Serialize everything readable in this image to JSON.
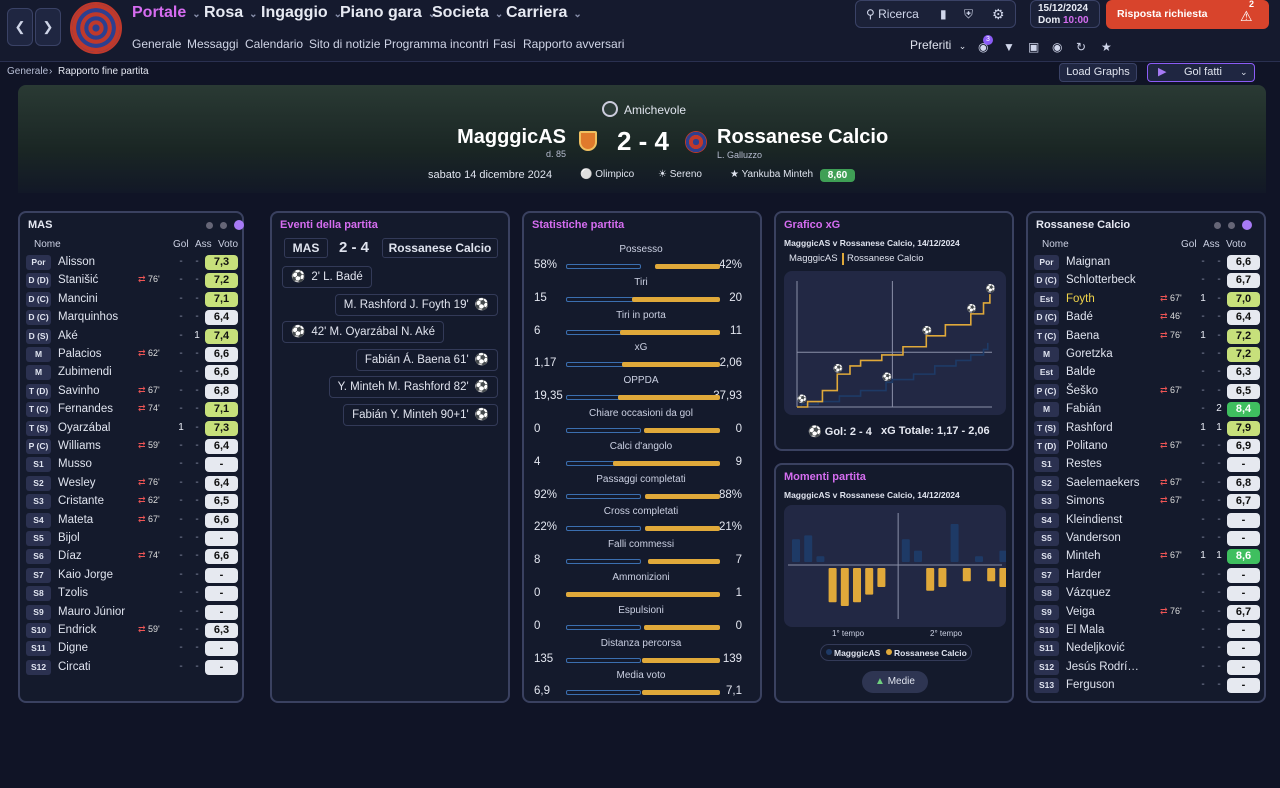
{
  "nav": {
    "menus": [
      "Portale",
      "Rosa",
      "Ingaggio",
      "Piano gara",
      "Societa",
      "Carriera"
    ],
    "submenus": [
      "Generale",
      "Messaggi",
      "Calendario",
      "Sito di notizie",
      "Programma incontri",
      "Fasi",
      "Rapporto avversari"
    ],
    "search": "Ricerca",
    "date": "15/12/2024",
    "day": "Dom",
    "time": "10:00",
    "action": "Risposta richiesta",
    "action_badge": "2",
    "preferiti": "Preferiti",
    "msg_badge": "3"
  },
  "breadcrumb": {
    "root": "Generale",
    "current": "Rapporto fine partita"
  },
  "toolbar": {
    "load_graphs": "Load Graphs",
    "gol_fatti": "Gol fatti"
  },
  "match": {
    "competition": "Amichevole",
    "home": "MagggicAS",
    "home_sub": "d. 85",
    "away": "Rossanese Calcio",
    "away_sub": "L. Galluzzo",
    "score": "2 - 4",
    "date": "sabato 14 dicembre 2024",
    "stadium": "Olimpico",
    "weather": "Sereno",
    "motm": "Yankuba Minteh",
    "motm_rating": "8,60"
  },
  "home_panel": {
    "title": "MAS",
    "cols": [
      "Nome",
      "Gol",
      "Ass",
      "Voto"
    ],
    "players": [
      {
        "pos": "Por",
        "name": "Alisson",
        "sub": "",
        "gol": "-",
        "ass": "-",
        "voto": "7,3",
        "c": "#c7e07b"
      },
      {
        "pos": "D (D)",
        "name": "Stanišić",
        "sub": "76'",
        "gol": "-",
        "ass": "-",
        "voto": "7,2",
        "c": "#c7e07b"
      },
      {
        "pos": "D (C)",
        "name": "Mancini",
        "sub": "",
        "gol": "-",
        "ass": "-",
        "voto": "7,1",
        "c": "#c7e07b"
      },
      {
        "pos": "D (C)",
        "name": "Marquinhos",
        "sub": "",
        "gol": "-",
        "ass": "-",
        "voto": "6,4",
        "c": "#e6e9f0"
      },
      {
        "pos": "D (S)",
        "name": "Aké",
        "sub": "",
        "gol": "-",
        "ass": "1",
        "voto": "7,4",
        "c": "#c7e07b"
      },
      {
        "pos": "M",
        "name": "Palacios",
        "sub": "62'",
        "gol": "-",
        "ass": "-",
        "voto": "6,6",
        "c": "#e6e9f0"
      },
      {
        "pos": "M",
        "name": "Zubimendi",
        "sub": "",
        "gol": "-",
        "ass": "-",
        "voto": "6,6",
        "c": "#e6e9f0"
      },
      {
        "pos": "T (D)",
        "name": "Savinho",
        "sub": "67'",
        "gol": "-",
        "ass": "-",
        "voto": "6,8",
        "c": "#e6e9f0"
      },
      {
        "pos": "T (C)",
        "name": "Fernandes",
        "sub": "74'",
        "gol": "-",
        "ass": "-",
        "voto": "7,1",
        "c": "#c7e07b"
      },
      {
        "pos": "T (S)",
        "name": "Oyarzábal",
        "sub": "",
        "gol": "1",
        "ass": "-",
        "voto": "7,3",
        "c": "#c7e07b"
      },
      {
        "pos": "P (C)",
        "name": "Williams",
        "sub": "59'",
        "gol": "-",
        "ass": "-",
        "voto": "6,4",
        "c": "#e6e9f0"
      },
      {
        "pos": "S1",
        "name": "Musso",
        "sub": "",
        "gol": "-",
        "ass": "-",
        "voto": "-",
        "c": "#e6e9f0"
      },
      {
        "pos": "S2",
        "name": "Wesley",
        "sub": "76'",
        "gol": "-",
        "ass": "-",
        "voto": "6,4",
        "c": "#e6e9f0"
      },
      {
        "pos": "S3",
        "name": "Cristante",
        "sub": "62'",
        "gol": "-",
        "ass": "-",
        "voto": "6,5",
        "c": "#e6e9f0"
      },
      {
        "pos": "S4",
        "name": "Mateta",
        "sub": "67'",
        "gol": "-",
        "ass": "-",
        "voto": "6,6",
        "c": "#e6e9f0"
      },
      {
        "pos": "S5",
        "name": "Bijol",
        "sub": "",
        "gol": "-",
        "ass": "-",
        "voto": "-",
        "c": "#e6e9f0"
      },
      {
        "pos": "S6",
        "name": "Díaz",
        "sub": "74'",
        "gol": "-",
        "ass": "-",
        "voto": "6,6",
        "c": "#e6e9f0"
      },
      {
        "pos": "S7",
        "name": "Kaio Jorge",
        "sub": "",
        "gol": "-",
        "ass": "-",
        "voto": "-",
        "c": "#e6e9f0"
      },
      {
        "pos": "S8",
        "name": "Tzolis",
        "sub": "",
        "gol": "-",
        "ass": "-",
        "voto": "-",
        "c": "#e6e9f0"
      },
      {
        "pos": "S9",
        "name": "Mauro Júnior",
        "sub": "",
        "gol": "-",
        "ass": "-",
        "voto": "-",
        "c": "#e6e9f0"
      },
      {
        "pos": "S10",
        "name": "Endrick",
        "sub": "59'",
        "gol": "-",
        "ass": "-",
        "voto": "6,3",
        "c": "#e6e9f0"
      },
      {
        "pos": "S11",
        "name": "Digne",
        "sub": "",
        "gol": "-",
        "ass": "-",
        "voto": "-",
        "c": "#e6e9f0"
      },
      {
        "pos": "S12",
        "name": "Circati",
        "sub": "",
        "gol": "-",
        "ass": "-",
        "voto": "-",
        "c": "#e6e9f0"
      }
    ]
  },
  "away_panel": {
    "title": "Rossanese Calcio",
    "cols": [
      "Nome",
      "Gol",
      "Ass",
      "Voto"
    ],
    "players": [
      {
        "pos": "Por",
        "name": "Maignan",
        "sub": "",
        "gol": "-",
        "ass": "-",
        "voto": "6,6",
        "c": "#e6e9f0"
      },
      {
        "pos": "D (C)",
        "name": "Schlotterbeck",
        "sub": "",
        "gol": "-",
        "ass": "-",
        "voto": "6,7",
        "c": "#e6e9f0"
      },
      {
        "pos": "Est (D)",
        "name": "Foyth",
        "sub": "67'",
        "gol": "1",
        "ass": "-",
        "voto": "7,0",
        "c": "#c7e07b",
        "hl": true
      },
      {
        "pos": "D (C)",
        "name": "Badé",
        "sub": "46'",
        "gol": "-",
        "ass": "-",
        "voto": "6,4",
        "c": "#e6e9f0"
      },
      {
        "pos": "T (C)",
        "name": "Baena",
        "sub": "76'",
        "gol": "1",
        "ass": "-",
        "voto": "7,2",
        "c": "#c7e07b"
      },
      {
        "pos": "M",
        "name": "Goretzka",
        "sub": "",
        "gol": "-",
        "ass": "-",
        "voto": "7,2",
        "c": "#c7e07b"
      },
      {
        "pos": "Est (S)",
        "name": "Balde",
        "sub": "",
        "gol": "-",
        "ass": "-",
        "voto": "6,3",
        "c": "#e6e9f0"
      },
      {
        "pos": "P (C)",
        "name": "Šeško",
        "sub": "67'",
        "gol": "-",
        "ass": "-",
        "voto": "6,5",
        "c": "#e6e9f0"
      },
      {
        "pos": "M",
        "name": "Fabián",
        "sub": "",
        "gol": "-",
        "ass": "2",
        "voto": "8,4",
        "c": "#3fbf5f"
      },
      {
        "pos": "T (S)",
        "name": "Rashford",
        "sub": "",
        "gol": "1",
        "ass": "1",
        "voto": "7,9",
        "c": "#c7e07b"
      },
      {
        "pos": "T (D)",
        "name": "Politano",
        "sub": "67'",
        "gol": "-",
        "ass": "-",
        "voto": "6,9",
        "c": "#e6e9f0"
      },
      {
        "pos": "S1",
        "name": "Restes",
        "sub": "",
        "gol": "-",
        "ass": "-",
        "voto": "-",
        "c": "#e6e9f0"
      },
      {
        "pos": "S2",
        "name": "Saelemaekers",
        "sub": "67'",
        "gol": "-",
        "ass": "-",
        "voto": "6,8",
        "c": "#e6e9f0"
      },
      {
        "pos": "S3",
        "name": "Simons",
        "sub": "67'",
        "gol": "-",
        "ass": "-",
        "voto": "6,7",
        "c": "#e6e9f0"
      },
      {
        "pos": "S4",
        "name": "Kleindienst",
        "sub": "",
        "gol": "-",
        "ass": "-",
        "voto": "-",
        "c": "#e6e9f0"
      },
      {
        "pos": "S5",
        "name": "Vanderson",
        "sub": "",
        "gol": "-",
        "ass": "-",
        "voto": "-",
        "c": "#e6e9f0"
      },
      {
        "pos": "S6",
        "name": "Minteh",
        "sub": "67'",
        "gol": "1",
        "ass": "1",
        "voto": "8,6",
        "c": "#3fbf5f"
      },
      {
        "pos": "S7",
        "name": "Harder",
        "sub": "",
        "gol": "-",
        "ass": "-",
        "voto": "-",
        "c": "#e6e9f0"
      },
      {
        "pos": "S8",
        "name": "Vázquez",
        "sub": "",
        "gol": "-",
        "ass": "-",
        "voto": "-",
        "c": "#e6e9f0"
      },
      {
        "pos": "S9",
        "name": "Veiga",
        "sub": "76'",
        "gol": "-",
        "ass": "-",
        "voto": "6,7",
        "c": "#e6e9f0"
      },
      {
        "pos": "S10",
        "name": "El Mala",
        "sub": "",
        "gol": "-",
        "ass": "-",
        "voto": "-",
        "c": "#e6e9f0"
      },
      {
        "pos": "S11",
        "name": "Nedeljković",
        "sub": "",
        "gol": "-",
        "ass": "-",
        "voto": "-",
        "c": "#e6e9f0"
      },
      {
        "pos": "S12",
        "name": "Jesús Rodrí…",
        "sub": "",
        "gol": "-",
        "ass": "-",
        "voto": "-",
        "c": "#e6e9f0"
      },
      {
        "pos": "S13",
        "name": "Ferguson",
        "sub": "",
        "gol": "-",
        "ass": "-",
        "voto": "-",
        "c": "#e6e9f0"
      }
    ]
  },
  "events": {
    "title": "Eventi della partita",
    "home": "MAS",
    "score": "2 - 4",
    "away": "Rossanese Calcio",
    "items": [
      {
        "side": "home",
        "text": "2' L. Badé"
      },
      {
        "side": "away",
        "text": "M. Rashford J. Foyth 19'"
      },
      {
        "side": "home",
        "text": "42' M. Oyarzábal N. Aké"
      },
      {
        "side": "away",
        "text": "Fabián Á. Baena 61'"
      },
      {
        "side": "away",
        "text": "Y. Minteh M. Rashford 82'"
      },
      {
        "side": "away",
        "text": "Fabián Y. Minteh 90+1'"
      }
    ]
  },
  "stats": {
    "title": "Statistiche partita",
    "rows": [
      {
        "label": "Possesso",
        "home": "58%",
        "away": "42%",
        "hv": 58,
        "av": 42
      },
      {
        "label": "Tiri",
        "home": "15",
        "away": "20",
        "hv": 15,
        "av": 20
      },
      {
        "label": "Tiri in porta",
        "home": "6",
        "away": "11",
        "hv": 6,
        "av": 11
      },
      {
        "label": "xG",
        "home": "1,17",
        "away": "2,06",
        "hv": 1.17,
        "av": 2.06
      },
      {
        "label": "OPPDA",
        "home": "19,35",
        "away": "37,93",
        "hv": 19.35,
        "av": 37.93
      },
      {
        "label": "Chiare occasioni da gol",
        "home": "0",
        "away": "0",
        "hv": 0,
        "av": 0
      },
      {
        "label": "Calci d'angolo",
        "home": "4",
        "away": "9",
        "hv": 4,
        "av": 9
      },
      {
        "label": "Passaggi completati",
        "home": "92%",
        "away": "88%",
        "hv": 92,
        "av": 88
      },
      {
        "label": "Cross completati",
        "home": "22%",
        "away": "21%",
        "hv": 22,
        "av": 21
      },
      {
        "label": "Falli commessi",
        "home": "8",
        "away": "7",
        "hv": 8,
        "av": 7
      },
      {
        "label": "Ammonizioni",
        "home": "0",
        "away": "1",
        "hv": 0,
        "av": 1
      },
      {
        "label": "Espulsioni",
        "home": "0",
        "away": "0",
        "hv": 0,
        "av": 0
      },
      {
        "label": "Distanza percorsa",
        "home": "135",
        "away": "139",
        "hv": 135,
        "av": 139
      },
      {
        "label": "Media voto",
        "home": "6,9",
        "away": "7,1",
        "hv": 6.9,
        "av": 7.1
      }
    ]
  },
  "xg": {
    "title": "Grafico xG",
    "subtitle": "MagggicAS v Rossanese Calcio, 14/12/2024",
    "legend_home": "MagggicAS",
    "legend_away": "Rossanese Calcio",
    "footer_gol": "Gol: 2 - 4",
    "footer_xg": "xG Totale: 1,17 - 2,06"
  },
  "momenti": {
    "title": "Momenti partita",
    "subtitle": "MagggicAS v Rossanese Calcio, 14/12/2024",
    "h1": "1° tempo",
    "h2": "2° tempo",
    "legend_home": "MagggicAS",
    "legend_away": "Rossanese Calcio",
    "button": "Medie"
  },
  "colors": {
    "accent": "#d56df0",
    "home": "#1e3a66",
    "away": "#e0a93a",
    "action": "#d8442c"
  },
  "chart_data": [
    {
      "type": "line",
      "title": "Grafico xG",
      "series": [
        {
          "name": "MagggicAS",
          "color": "#1e3a66",
          "x": [
            0,
            2,
            10,
            20,
            30,
            42,
            45,
            55,
            65,
            75,
            82,
            88,
            90
          ],
          "y": [
            0,
            0.05,
            0.1,
            0.2,
            0.3,
            0.45,
            0.5,
            0.6,
            0.75,
            0.85,
            0.95,
            1.05,
            1.17
          ]
        },
        {
          "name": "Rossanese Calcio",
          "color": "#e0a93a",
          "x": [
            0,
            5,
            12,
            19,
            25,
            30,
            40,
            50,
            61,
            70,
            82,
            88,
            91
          ],
          "y": [
            0,
            0.1,
            0.3,
            0.6,
            0.75,
            0.85,
            0.95,
            1.1,
            1.3,
            1.5,
            1.7,
            1.9,
            2.06
          ]
        }
      ],
      "goals_home": [
        2,
        42
      ],
      "goals_away": [
        19,
        61,
        82,
        91
      ]
    },
    {
      "type": "bar",
      "title": "Momenti partita",
      "categories": [
        "1",
        "2",
        "3",
        "4",
        "5",
        "6",
        "7",
        "8",
        "9",
        "10",
        "11",
        "12",
        "13",
        "14",
        "15",
        "16",
        "17",
        "18"
      ],
      "series": [
        {
          "name": "MagggicAS",
          "values": [
            0.6,
            0.7,
            0.15,
            0,
            0,
            0,
            0,
            0,
            0,
            0.6,
            0.3,
            0,
            0,
            1,
            0,
            0.15,
            0,
            0.3
          ]
        },
        {
          "name": "Rossanese Calcio",
          "values": [
            0,
            0,
            0,
            0.9,
            1,
            0.9,
            0.7,
            0.5,
            0,
            0,
            0,
            0.6,
            0.5,
            0,
            0.35,
            0,
            0.35,
            0.5
          ]
        }
      ]
    }
  ]
}
